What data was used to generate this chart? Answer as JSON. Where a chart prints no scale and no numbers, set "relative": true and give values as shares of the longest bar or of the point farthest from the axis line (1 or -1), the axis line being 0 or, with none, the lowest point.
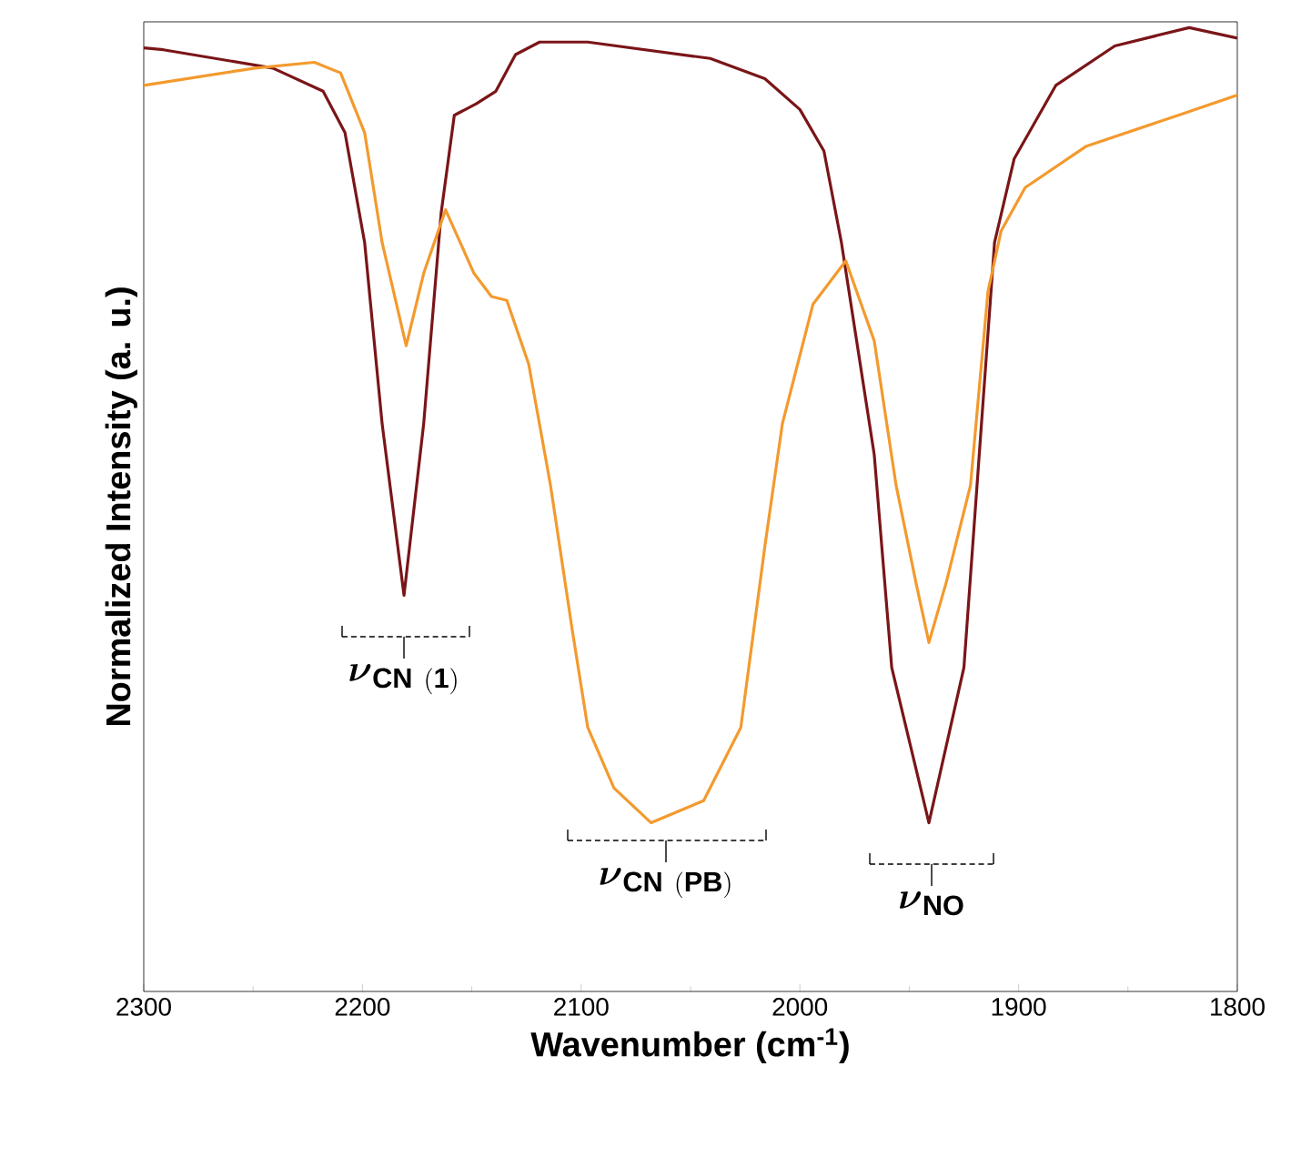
{
  "chart_data": {
    "type": "line",
    "relative": true,
    "xlabel": "Wavenumber (cm$^{-1}$)",
    "ylabel": "Normalized Intensity (a. u.)",
    "xlim": [
      2300,
      1800
    ],
    "xticks": [
      2300,
      2200,
      2100,
      2000,
      1900,
      1800
    ],
    "line_style": "solid",
    "marker": "none",
    "series": [
      {
        "color": "#7a1518",
        "x": [
          2300,
          2291,
          2241,
          2218,
          2208,
          2199,
          2191,
          2181,
          2172,
          2164,
          2158,
          2148,
          2139,
          2130,
          2119,
          2097,
          2041,
          2016,
          2000,
          1989,
          1981,
          1966,
          1958,
          1941,
          1925,
          1919,
          1911,
          1902,
          1883,
          1856,
          1822,
          1800
        ],
        "values": [
          0.979,
          0.977,
          0.958,
          0.934,
          0.891,
          0.777,
          0.589,
          0.411,
          0.589,
          0.808,
          0.909,
          0.921,
          0.934,
          0.972,
          0.985,
          0.985,
          0.968,
          0.947,
          0.915,
          0.872,
          0.777,
          0.557,
          0.336,
          0.175,
          0.336,
          0.525,
          0.777,
          0.864,
          0.94,
          0.981,
          1,
          0.989
        ]
      },
      {
        "color": "#f39a2e",
        "x": [
          2300,
          2249,
          2222,
          2210,
          2199,
          2191,
          2180,
          2172,
          2162,
          2149,
          2141,
          2134,
          2124,
          2114,
          2104,
          2097,
          2085,
          2068,
          2044,
          2027,
          2016,
          2008,
          1994,
          1979,
          1966,
          1956,
          1947,
          1941,
          1933,
          1922,
          1914,
          1908,
          1897,
          1869,
          1827,
          1800
        ],
        "values": [
          0.94,
          0.958,
          0.964,
          0.953,
          0.891,
          0.777,
          0.67,
          0.745,
          0.811,
          0.745,
          0.721,
          0.717,
          0.651,
          0.525,
          0.374,
          0.274,
          0.211,
          0.175,
          0.198,
          0.274,
          0.462,
          0.589,
          0.713,
          0.758,
          0.675,
          0.525,
          0.425,
          0.362,
          0.425,
          0.525,
          0.726,
          0.789,
          0.834,
          0.877,
          0.909,
          0.93
        ]
      }
    ],
    "annotations": [
      "\\boldsymbol{\\nu}_{\\mathbf{CN\\ (1)}}",
      "\\boldsymbol{\\nu}_{\\mathbf{CN\\ (PB)}}",
      "\\boldsymbol{\\nu}_{\\mathbf{NO}}"
    ]
  }
}
